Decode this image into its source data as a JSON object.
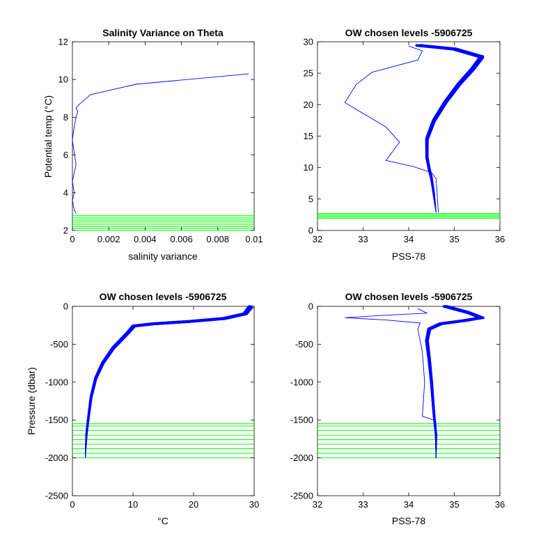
{
  "colors": {
    "profile": "#0000ff",
    "levels": "#00ff00",
    "axis": "#000000",
    "background": "#ffffff"
  },
  "chart_data": [
    {
      "type": "line",
      "title": "Salinity Variance on Theta",
      "xlabel": "salinity variance",
      "ylabel": "Potential temp (°C)",
      "xlim": [
        0,
        0.01
      ],
      "ylim": [
        2,
        12
      ],
      "xticks": [
        "0",
        "0.002",
        "0.004",
        "0.006",
        "0.008",
        "0.01"
      ],
      "yticks": [
        "2",
        "4",
        "6",
        "8",
        "10",
        "12"
      ],
      "grid": false,
      "series": [
        {
          "color": "#0000ff",
          "x": [
            0.0002,
            0.0001,
            0.0,
            0.0001,
            0.0,
            0.0002,
            0.0001,
            0.0,
            0.0001,
            0.0002,
            0.0003,
            0.0002,
            0.0004,
            0.001,
            0.0035,
            0.0097
          ],
          "y": [
            2.9,
            3.1,
            3.6,
            4.0,
            4.6,
            5.5,
            6.1,
            6.8,
            7.5,
            8.0,
            8.3,
            8.5,
            8.7,
            9.2,
            9.75,
            10.3
          ]
        }
      ],
      "levels": {
        "color": "#00ff00",
        "y": [
          2.0,
          2.1,
          2.2,
          2.3,
          2.4,
          2.5,
          2.6,
          2.7,
          2.8
        ]
      }
    },
    {
      "type": "line",
      "title": "OW chosen levels -5906725",
      "xlabel": "PSS-78",
      "ylabel": "",
      "xlim": [
        32,
        36
      ],
      "ylim": [
        0,
        31
      ],
      "xticks": [
        "32",
        "33",
        "34",
        "35",
        "36"
      ],
      "yticks": [
        "0",
        "5",
        "10",
        "15",
        "20",
        "25",
        "30"
      ],
      "grid": false,
      "series": [
        {
          "color": "#0000ff",
          "note_profiles": 60,
          "x": [
            34.6,
            34.55,
            34.5,
            34.45,
            34.4,
            34.4,
            34.55,
            34.8,
            35.1,
            35.4,
            35.6,
            35.0,
            34.2
          ],
          "y": [
            3.0,
            6.0,
            8.5,
            10.0,
            12.0,
            15.0,
            18.0,
            21.0,
            24.0,
            26.5,
            28.5,
            29.8,
            30.4
          ]
        },
        {
          "color": "#0000ff",
          "x": [
            34.65,
            34.6,
            34.5,
            34.1,
            33.5,
            33.8,
            33.5,
            32.6,
            32.85,
            33.2,
            34.2,
            34.3,
            34.0
          ],
          "y": [
            3.0,
            8.5,
            9.5,
            10.5,
            11.5,
            14.5,
            17.0,
            21.0,
            24.0,
            26.0,
            28.0,
            29.5,
            30.3
          ]
        }
      ],
      "levels": {
        "color": "#00ff00",
        "y": [
          2.0,
          2.2,
          2.4,
          2.6,
          2.8
        ]
      }
    },
    {
      "type": "line",
      "title": "OW chosen levels -5906725",
      "xlabel": "°C",
      "ylabel": "Pressure (dbar)",
      "xlim": [
        0,
        31
      ],
      "ylim": [
        -2500,
        0
      ],
      "xticks": [
        "0",
        "10",
        "20",
        "30"
      ],
      "yticks": [
        "-2500",
        "-2000",
        "-1500",
        "-1000",
        "-500",
        "0"
      ],
      "grid": false,
      "series": [
        {
          "color": "#0000ff",
          "note_profiles": 60,
          "x": [
            2.2,
            2.4,
            2.7,
            3.2,
            4.0,
            5.2,
            7.0,
            9.5,
            10.5,
            14.0,
            20.0,
            26.0,
            29.5,
            30.5
          ],
          "y": [
            -2000,
            -1700,
            -1500,
            -1200,
            -950,
            -750,
            -550,
            -350,
            -260,
            -230,
            -200,
            -160,
            -100,
            0
          ]
        }
      ],
      "levels": {
        "color": "#00ff00",
        "y": [
          -2000,
          -1940,
          -1880,
          -1820,
          -1760,
          -1700,
          -1640,
          -1580,
          -1550
        ]
      }
    },
    {
      "type": "line",
      "title": "OW chosen levels -5906725",
      "xlabel": "PSS-78",
      "ylabel": "",
      "xlim": [
        32,
        36
      ],
      "ylim": [
        -2500,
        0
      ],
      "xticks": [
        "32",
        "33",
        "34",
        "35",
        "36"
      ],
      "yticks": [
        "-2500",
        "-2000",
        "-1500",
        "-1000",
        "-500",
        "0"
      ],
      "grid": false,
      "series": [
        {
          "color": "#0000ff",
          "note_profiles": 60,
          "x": [
            34.6,
            34.6,
            34.55,
            34.5,
            34.45,
            34.4,
            34.45,
            34.7,
            35.2,
            35.6,
            35.3,
            34.8
          ],
          "y": [
            -2000,
            -1700,
            -1400,
            -1000,
            -700,
            -450,
            -300,
            -230,
            -190,
            -150,
            -80,
            0
          ]
        },
        {
          "color": "#0000ff",
          "x": [
            34.6,
            34.55,
            34.3,
            34.35,
            34.3,
            34.2,
            34.25,
            33.5,
            32.6,
            33.4,
            34.4,
            34.2
          ],
          "y": [
            -1600,
            -1500,
            -1450,
            -1000,
            -600,
            -300,
            -220,
            -180,
            -150,
            -120,
            -90,
            -30
          ]
        }
      ],
      "levels": {
        "color": "#00ff00",
        "y": [
          -2000,
          -1940,
          -1880,
          -1820,
          -1760,
          -1700,
          -1640,
          -1580,
          -1550
        ]
      }
    }
  ]
}
